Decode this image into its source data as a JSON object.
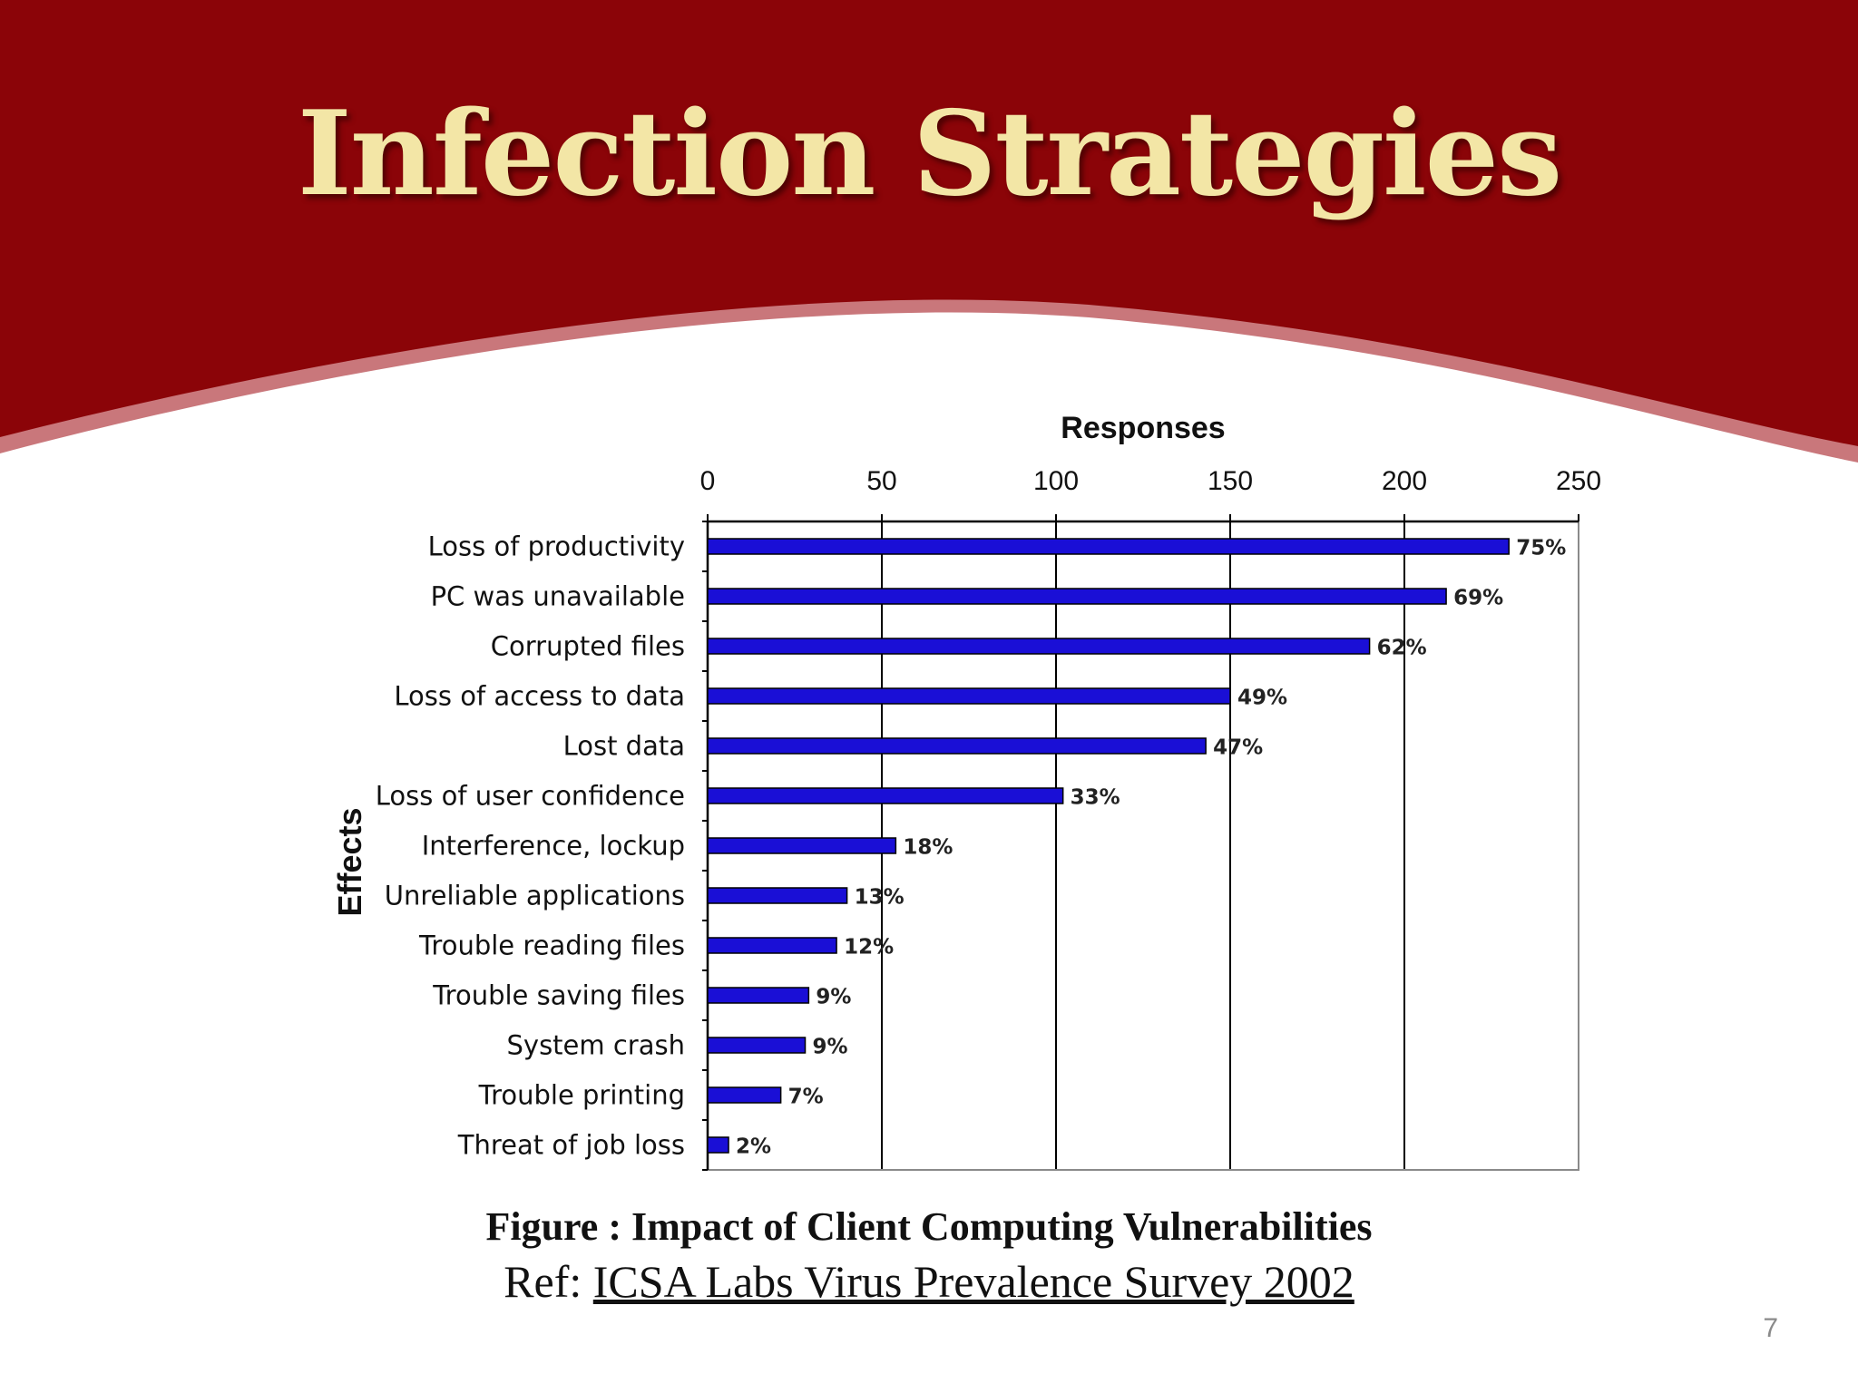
{
  "slide": {
    "title": "Infection Strategies",
    "page_number": "7",
    "colors": {
      "banner": "#8b0408",
      "banner_edge": "#c9777b",
      "title_text": "#f3e6a6",
      "bar": "#1a0fd6"
    }
  },
  "caption": "Figure : Impact of Client Computing Vulnerabilities",
  "reference": {
    "prefix": "Ref: ",
    "source": "ICSA Labs Virus Prevalence Survey 2002"
  },
  "chart_data": {
    "type": "bar",
    "orientation": "horizontal",
    "xlabel": "Responses",
    "ylabel": "Effects",
    "xlim": [
      0,
      250
    ],
    "xticks": [
      0,
      50,
      100,
      150,
      200,
      250
    ],
    "x_axis_position": "top",
    "grid": "vertical",
    "categories": [
      "Loss of productivity",
      "PC was unavailable",
      "Corrupted files",
      "Loss of access to data",
      "Lost data",
      "Loss of user confidence",
      "Interference, lockup",
      "Unreliable applications",
      "Trouble reading files",
      "Trouble saving files",
      "System crash",
      "Trouble printing",
      "Threat of job loss"
    ],
    "values": [
      230,
      212,
      190,
      150,
      143,
      102,
      54,
      40,
      37,
      29,
      28,
      21,
      6
    ],
    "data_labels": [
      "75%",
      "69%",
      "62%",
      "49%",
      "47%",
      "33%",
      "18%",
      "13%",
      "12%",
      "9%",
      "9%",
      "7%",
      "2%"
    ]
  }
}
